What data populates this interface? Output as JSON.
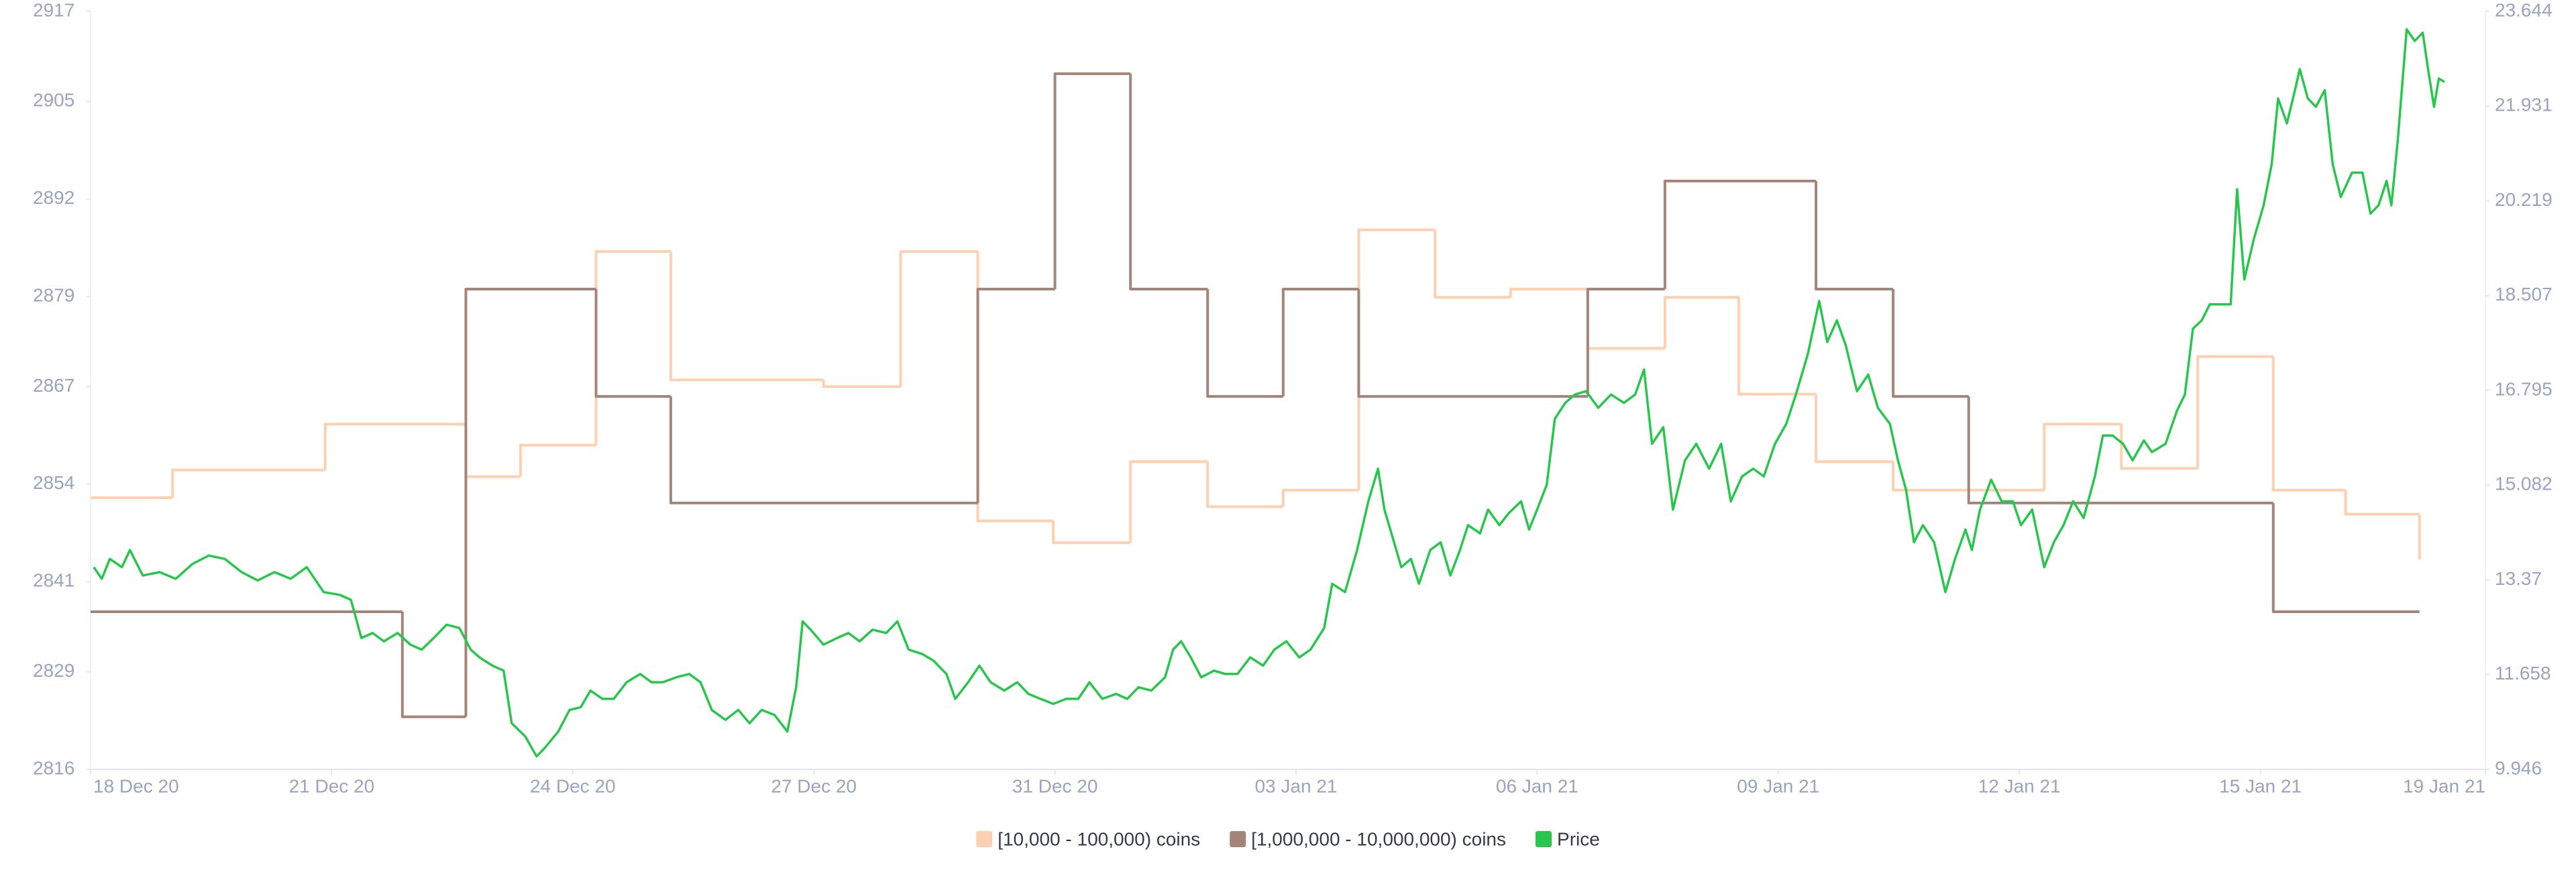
{
  "chart_data": {
    "type": "line",
    "xlim": [
      0,
      29.8
    ],
    "xticks": [
      {
        "value": 0,
        "label": "18 Dec 20"
      },
      {
        "value": 3,
        "label": "21 Dec 20"
      },
      {
        "value": 6,
        "label": "24 Dec 20"
      },
      {
        "value": 9,
        "label": "27 Dec 20"
      },
      {
        "value": 12,
        "label": "31 Dec 20"
      },
      {
        "value": 15,
        "label": "03 Jan 21"
      },
      {
        "value": 18,
        "label": "06 Jan 21"
      },
      {
        "value": 21,
        "label": "09 Jan 21"
      },
      {
        "value": 24,
        "label": "12 Jan 21"
      },
      {
        "value": 27,
        "label": "15 Jan 21"
      },
      {
        "value": 29.8,
        "label": "19 Jan 21"
      }
    ],
    "ylim": [
      2816,
      2917
    ],
    "yticks": [
      2816,
      2829,
      2841,
      2854,
      2867,
      2879,
      2892,
      2905,
      2917
    ],
    "y2lim": [
      9.946,
      23.644
    ],
    "y2ticks": [
      9.946,
      11.658,
      13.37,
      15.082,
      16.795,
      18.507,
      20.219,
      21.931,
      23.644
    ],
    "grid": false,
    "legend": "bottom",
    "series": [
      {
        "name": "[10,000 - 100,000) coins",
        "color": "#fdd0b1",
        "step": true,
        "x": [
          0,
          1.02,
          2.92,
          4.67,
          5.35,
          6.29,
          7.22,
          9.12,
          10.08,
          11.04,
          11.98,
          12.94,
          13.9,
          14.84,
          15.78,
          16.73,
          17.67,
          18.63,
          19.59,
          20.51,
          21.47,
          22.43,
          24.31,
          25.27,
          26.22,
          27.16,
          28.06,
          28.98
        ],
        "values": [
          2852.2,
          2855.9,
          2862,
          2855,
          2859.2,
          2885,
          2867.9,
          2867,
          2885,
          2849.1,
          2846.2,
          2857,
          2851,
          2853.2,
          2887.9,
          2878.9,
          2880,
          2872.1,
          2878.9,
          2866,
          2857,
          2853.2,
          2862,
          2856.1,
          2871,
          2853.2,
          2850,
          2844
        ]
      },
      {
        "name": "[1,000,000 - 10,000,000) coins",
        "color": "#a38679",
        "step": true,
        "x": [
          0,
          3.88,
          4.67,
          6.29,
          7.22,
          11.04,
          12.0,
          12.94,
          13.9,
          14.84,
          15.78,
          18.63,
          19.59,
          21.47,
          22.43,
          23.37,
          27.16,
          28.98
        ],
        "values": [
          2837,
          2823,
          2880,
          2865.7,
          2851.5,
          2880,
          2908.7,
          2880,
          2865.7,
          2880,
          2865.7,
          2880,
          2894.4,
          2880,
          2865.7,
          2851.5,
          2837,
          2837
        ]
      },
      {
        "name": "Price",
        "color": "#27c64c",
        "axis": "y2",
        "x": [
          0.04,
          0.14,
          0.24,
          0.39,
          0.49,
          0.65,
          0.86,
          1.06,
          1.27,
          1.47,
          1.67,
          1.88,
          2.08,
          2.29,
          2.49,
          2.69,
          2.9,
          3.1,
          3.24,
          3.37,
          3.51,
          3.65,
          3.82,
          3.98,
          4.12,
          4.27,
          4.43,
          4.59,
          4.73,
          4.84,
          5.0,
          5.14,
          5.24,
          5.41,
          5.55,
          5.65,
          5.82,
          5.96,
          6.1,
          6.22,
          6.37,
          6.51,
          6.67,
          6.84,
          6.98,
          7.12,
          7.29,
          7.45,
          7.59,
          7.73,
          7.9,
          8.06,
          8.2,
          8.35,
          8.51,
          8.67,
          8.78,
          8.86,
          8.96,
          9.12,
          9.29,
          9.43,
          9.57,
          9.73,
          9.9,
          10.04,
          10.18,
          10.35,
          10.49,
          10.65,
          10.76,
          10.92,
          11.06,
          11.2,
          11.37,
          11.53,
          11.67,
          11.82,
          11.98,
          12.14,
          12.29,
          12.43,
          12.59,
          12.76,
          12.9,
          13.04,
          13.2,
          13.37,
          13.47,
          13.57,
          13.69,
          13.82,
          13.98,
          14.12,
          14.27,
          14.43,
          14.59,
          14.73,
          14.88,
          15.04,
          15.18,
          15.35,
          15.45,
          15.61,
          15.76,
          15.9,
          16.02,
          16.1,
          16.22,
          16.31,
          16.43,
          16.53,
          16.67,
          16.8,
          16.92,
          17.04,
          17.14,
          17.29,
          17.39,
          17.53,
          17.65,
          17.8,
          17.9,
          18.0,
          18.12,
          18.22,
          18.35,
          18.47,
          18.61,
          18.76,
          18.92,
          19.08,
          19.22,
          19.33,
          19.43,
          19.57,
          19.69,
          19.84,
          19.98,
          20.14,
          20.29,
          20.41,
          20.55,
          20.69,
          20.82,
          20.96,
          21.1,
          21.22,
          21.37,
          21.51,
          21.61,
          21.73,
          21.84,
          21.98,
          22.12,
          22.24,
          22.39,
          22.49,
          22.59,
          22.69,
          22.8,
          22.94,
          23.08,
          23.2,
          23.33,
          23.41,
          23.51,
          23.65,
          23.78,
          23.92,
          24.02,
          24.16,
          24.31,
          24.43,
          24.55,
          24.67,
          24.8,
          24.94,
          25.04,
          25.16,
          25.29,
          25.41,
          25.55,
          25.65,
          25.82,
          25.96,
          26.06,
          26.16,
          26.27,
          26.37,
          26.51,
          26.63,
          26.71,
          26.8,
          26.92,
          27.04,
          27.14,
          27.22,
          27.33,
          27.43,
          27.49,
          27.59,
          27.69,
          27.8,
          27.9,
          28.0,
          28.14,
          28.27,
          28.37,
          28.47,
          28.57,
          28.63,
          28.71,
          28.82,
          28.92,
          29.02,
          29.08,
          29.16,
          29.22,
          29.29
        ],
        "values": [
          13.6,
          13.39,
          13.75,
          13.6,
          13.91,
          13.45,
          13.51,
          13.39,
          13.66,
          13.81,
          13.75,
          13.51,
          13.36,
          13.51,
          13.39,
          13.6,
          13.15,
          13.1,
          13.01,
          12.32,
          12.41,
          12.26,
          12.41,
          12.2,
          12.11,
          12.32,
          12.56,
          12.5,
          12.11,
          11.97,
          11.82,
          11.73,
          10.78,
          10.54,
          10.18,
          10.33,
          10.63,
          11.02,
          11.07,
          11.37,
          11.22,
          11.22,
          11.52,
          11.67,
          11.52,
          11.52,
          11.61,
          11.67,
          11.52,
          11.02,
          10.84,
          11.02,
          10.78,
          11.02,
          10.93,
          10.63,
          11.43,
          12.62,
          12.47,
          12.2,
          12.32,
          12.41,
          12.26,
          12.47,
          12.41,
          12.62,
          12.11,
          12.03,
          11.91,
          11.67,
          11.22,
          11.52,
          11.82,
          11.52,
          11.37,
          11.52,
          11.31,
          11.22,
          11.13,
          11.22,
          11.22,
          11.52,
          11.22,
          11.31,
          11.22,
          11.43,
          11.37,
          11.61,
          12.11,
          12.26,
          11.97,
          11.61,
          11.73,
          11.67,
          11.67,
          11.97,
          11.82,
          12.11,
          12.26,
          11.97,
          12.11,
          12.5,
          13.3,
          13.15,
          13.91,
          14.79,
          15.38,
          14.64,
          14.05,
          13.6,
          13.75,
          13.3,
          13.91,
          14.05,
          13.45,
          13.91,
          14.36,
          14.21,
          14.64,
          14.36,
          14.58,
          14.79,
          14.28,
          14.64,
          15.09,
          16.28,
          16.57,
          16.72,
          16.78,
          16.48,
          16.72,
          16.57,
          16.72,
          17.17,
          15.83,
          16.13,
          14.64,
          15.53,
          15.83,
          15.38,
          15.83,
          14.79,
          15.24,
          15.38,
          15.24,
          15.83,
          16.19,
          16.72,
          17.46,
          18.41,
          17.67,
          18.06,
          17.61,
          16.78,
          17.08,
          16.48,
          16.19,
          15.53,
          15.0,
          14.05,
          14.36,
          14.05,
          13.15,
          13.75,
          14.28,
          13.91,
          14.64,
          15.18,
          14.79,
          14.79,
          14.36,
          14.64,
          13.6,
          14.05,
          14.36,
          14.79,
          14.49,
          15.24,
          15.98,
          15.98,
          15.83,
          15.53,
          15.89,
          15.68,
          15.83,
          16.42,
          16.72,
          17.91,
          18.06,
          18.35,
          18.35,
          18.35,
          20.43,
          18.8,
          19.54,
          20.14,
          20.88,
          22.07,
          21.62,
          22.22,
          22.6,
          22.07,
          21.92,
          22.22,
          20.88,
          20.29,
          20.73,
          20.73,
          19.99,
          20.14,
          20.58,
          20.14,
          21.33,
          23.32,
          23.11,
          23.26,
          22.66,
          21.92,
          22.43,
          22.37
        ]
      }
    ]
  }
}
